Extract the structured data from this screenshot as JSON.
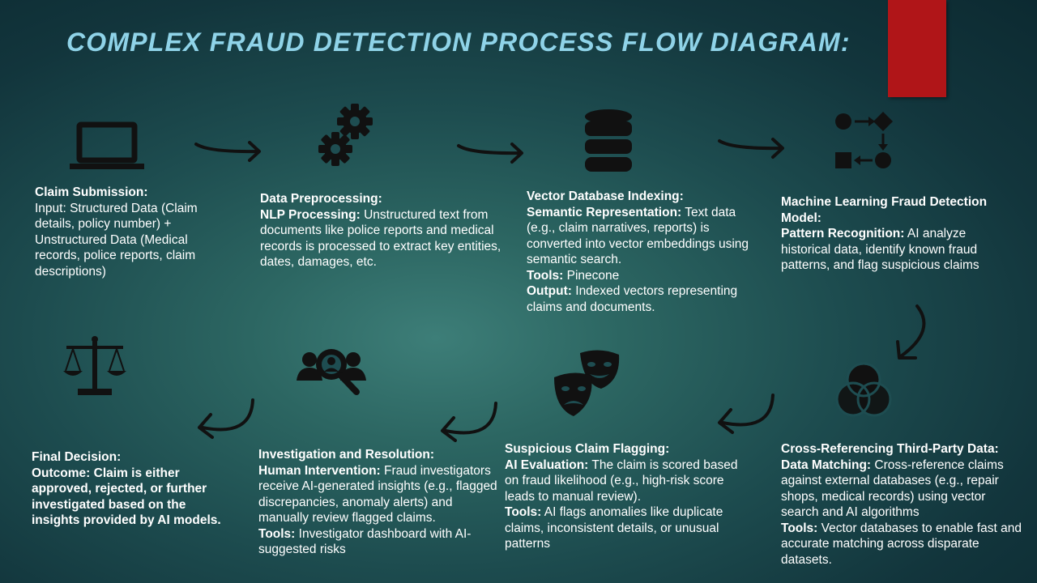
{
  "title": "COMPLEX FRAUD DETECTION PROCESS FLOW DIAGRAM:",
  "colors": {
    "title": "#8fd3e8",
    "accent_bar": "#b01518",
    "icon": "#111111"
  },
  "steps": [
    {
      "icon": "laptop-icon",
      "heading": "Claim Submission:",
      "text": "Input: Structured Data (Claim details, policy number) + Unstructured Data (Medical records, police reports, claim descriptions)"
    },
    {
      "icon": "gears-icon",
      "heading": "Data Preprocessing:",
      "p1_label": "NLP Processing:",
      "p1_text": " Unstructured text from documents like police reports and medical records is processed to extract key entities, dates, damages, etc."
    },
    {
      "icon": "database-icon",
      "heading": "Vector Database Indexing:",
      "p1_label": "Semantic Representation:",
      "p1_text": " Text data (e.g., claim narratives, reports) is converted into vector embeddings using semantic search.",
      "p2_label": "Tools:",
      "p2_text": " Pinecone",
      "p3_label": "Output:",
      "p3_text": " Indexed vectors representing claims and documents."
    },
    {
      "icon": "process-icon",
      "heading": "Machine Learning Fraud Detection Model:",
      "p1_label": "Pattern Recognition:",
      "p1_text": " AI analyze historical data, identify known fraud patterns, and flag suspicious claims"
    },
    {
      "icon": "venn-icon",
      "heading": "Cross-Referencing Third-Party Data:",
      "p1_label": "Data Matching:",
      "p1_text": " Cross-reference claims against external databases (e.g., repair shops, medical records) using vector search and AI algorithms",
      "p2_label": "Tools:",
      "p2_text": " Vector databases to enable fast and accurate matching across disparate datasets."
    },
    {
      "icon": "masks-icon",
      "heading": "Suspicious Claim Flagging:",
      "p1_label": "AI Evaluation:",
      "p1_text": " The claim is scored based on fraud likelihood (e.g., high-risk score leads to manual review).",
      "p2_label": "Tools:",
      "p2_text": " AI flags anomalies like duplicate claims, inconsistent details, or unusual patterns"
    },
    {
      "icon": "investigate-icon",
      "heading": "Investigation and Resolution:",
      "p1_label": "Human Intervention:",
      "p1_text": " Fraud investigators receive AI-generated insights (e.g., flagged discrepancies, anomaly alerts) and manually review flagged claims.",
      "p2_label": "Tools:",
      "p2_text": " Investigator dashboard with AI-suggested risks"
    },
    {
      "icon": "scales-icon",
      "heading": "Final Decision:",
      "text": "Outcome: Claim is either approved, rejected, or further investigated based on the insights provided by AI models."
    }
  ]
}
